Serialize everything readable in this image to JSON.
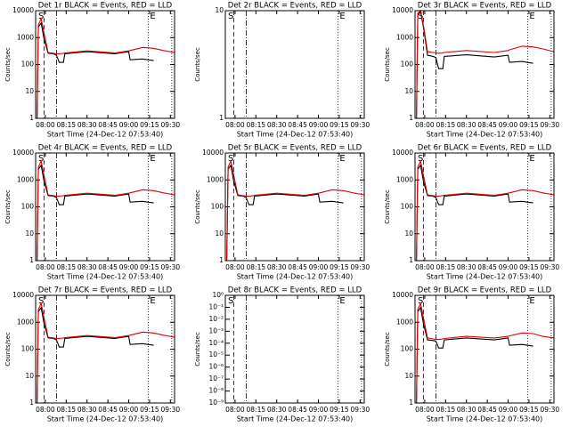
{
  "chart_data": [
    {
      "type": "line",
      "title": "Det 1r BLACK = Events, RED = LLD",
      "xlabel": "Start Time (24-Dec-12 07:53:40)",
      "ylabel": "Counts/sec",
      "ylog": true,
      "annotations": [
        "S",
        "E"
      ],
      "xlim": [
        "07:53",
        "09:33"
      ],
      "xticks": [
        "08:00",
        "08:15",
        "08:30",
        "08:45",
        "09:00",
        "09:15",
        "09:30"
      ],
      "ylim": [
        1,
        10000
      ],
      "yticks": [
        1,
        10,
        100,
        1000,
        10000
      ],
      "vlines": [
        {
          "x": "07:59",
          "style": "dashed"
        },
        {
          "x": "08:08",
          "style": "dashdot"
        },
        {
          "x": "09:14",
          "style": "dotted"
        },
        {
          "x": "09:31",
          "style": "dotted"
        }
      ],
      "x": [
        "07:54",
        "07:55",
        "07:57",
        "07:59",
        "08:02",
        "08:06",
        "08:08",
        "08:10",
        "08:13",
        "08:14",
        "08:30",
        "08:50",
        "09:00",
        "09:01",
        "09:10",
        "09:18",
        "09:25",
        "09:33"
      ],
      "series": [
        {
          "name": "BLACK",
          "color": "#000000",
          "values": [
            1,
            2500,
            3500,
            900,
            260,
            250,
            220,
            120,
            120,
            250,
            300,
            250,
            300,
            150,
            160,
            140,
            null,
            null
          ]
        },
        {
          "name": "RED",
          "color": "#e00000",
          "values": [
            1,
            3000,
            5000,
            1500,
            280,
            260,
            250,
            250,
            260,
            270,
            320,
            270,
            320,
            330,
            430,
            400,
            330,
            280
          ]
        }
      ]
    },
    {
      "type": "line",
      "title": "Det 2r BLACK = Events, RED = LLD",
      "xlabel": "Start Time (24-Dec-12 07:53:40)",
      "ylabel": "Counts/sec",
      "ylog": true,
      "annotations": [
        "S",
        "E"
      ],
      "xlim": [
        "07:53",
        "09:33"
      ],
      "xticks": [
        "08:00",
        "08:15",
        "08:30",
        "08:45",
        "09:00",
        "09:15",
        "09:30"
      ],
      "ylim": [
        1,
        10
      ],
      "yticks": [
        1,
        10
      ],
      "vlines": [
        {
          "x": "07:59",
          "style": "dashed"
        },
        {
          "x": "08:08",
          "style": "dashdot"
        },
        {
          "x": "09:14",
          "style": "dotted"
        },
        {
          "x": "09:31",
          "style": "dotted"
        }
      ],
      "x": [],
      "series": []
    },
    {
      "type": "line",
      "title": "Det 3r BLACK = Events, RED = LLD",
      "xlabel": "Start Time (24-Dec-12 07:53:40)",
      "ylabel": "Counts/sec",
      "ylog": true,
      "annotations": [
        "S",
        "E"
      ],
      "xlim": [
        "07:53",
        "09:33"
      ],
      "xticks": [
        "08:00",
        "08:15",
        "08:30",
        "08:45",
        "09:00",
        "09:15",
        "09:30"
      ],
      "ylim": [
        1,
        10000
      ],
      "yticks": [
        1,
        10,
        100,
        1000,
        10000
      ],
      "vlines": [
        {
          "x": "07:59",
          "style": "dashed"
        },
        {
          "x": "08:08",
          "style": "dashdot"
        },
        {
          "x": "09:14",
          "style": "dotted"
        },
        {
          "x": "09:31",
          "style": "dotted"
        }
      ],
      "x": [
        "07:54",
        "07:55",
        "07:57",
        "07:59",
        "08:02",
        "08:06",
        "08:08",
        "08:10",
        "08:13",
        "08:14",
        "08:30",
        "08:50",
        "09:00",
        "09:01",
        "09:10",
        "09:18",
        "09:25",
        "09:33"
      ],
      "series": [
        {
          "name": "BLACK",
          "color": "#000000",
          "values": [
            1,
            7000,
            9000,
            2500,
            220,
            200,
            180,
            70,
            70,
            200,
            230,
            190,
            220,
            120,
            130,
            110,
            null,
            null
          ]
        },
        {
          "name": "RED",
          "color": "#e00000",
          "values": [
            1,
            8000,
            10000,
            3000,
            300,
            280,
            270,
            260,
            270,
            280,
            330,
            280,
            330,
            350,
            480,
            450,
            380,
            300
          ]
        }
      ]
    },
    {
      "type": "line",
      "title": "Det 4r BLACK = Events, RED = LLD",
      "xlabel": "Start Time (24-Dec-12 07:53:40)",
      "ylabel": "Counts/sec",
      "ylog": true,
      "annotations": [
        "S",
        "E"
      ],
      "xlim": [
        "07:53",
        "09:33"
      ],
      "xticks": [
        "08:00",
        "08:15",
        "08:30",
        "08:45",
        "09:00",
        "09:15",
        "09:30"
      ],
      "ylim": [
        1,
        10000
      ],
      "yticks": [
        1,
        10,
        100,
        1000,
        10000
      ],
      "vlines": [
        {
          "x": "07:59",
          "style": "dashed"
        },
        {
          "x": "08:08",
          "style": "dashdot"
        },
        {
          "x": "09:14",
          "style": "dotted"
        },
        {
          "x": "09:31",
          "style": "dotted"
        }
      ],
      "x": [
        "07:54",
        "07:55",
        "07:57",
        "07:59",
        "08:02",
        "08:06",
        "08:08",
        "08:10",
        "08:13",
        "08:14",
        "08:30",
        "08:50",
        "09:00",
        "09:01",
        "09:10",
        "09:18",
        "09:25",
        "09:33"
      ],
      "series": [
        {
          "name": "BLACK",
          "color": "#000000",
          "values": [
            1,
            2500,
            3500,
            900,
            260,
            250,
            220,
            120,
            120,
            250,
            300,
            250,
            300,
            150,
            160,
            140,
            null,
            null
          ]
        },
        {
          "name": "RED",
          "color": "#e00000",
          "values": [
            1,
            3000,
            5000,
            1500,
            280,
            260,
            250,
            250,
            260,
            270,
            320,
            270,
            320,
            330,
            430,
            400,
            330,
            280
          ]
        }
      ]
    },
    {
      "type": "line",
      "title": "Det 5r BLACK = Events, RED = LLD",
      "xlabel": "Start Time (24-Dec-12 07:53:40)",
      "ylabel": "Counts/sec",
      "ylog": true,
      "annotations": [
        "S",
        "E"
      ],
      "xlim": [
        "07:53",
        "09:33"
      ],
      "xticks": [
        "08:00",
        "08:15",
        "08:30",
        "08:45",
        "09:00",
        "09:15",
        "09:30"
      ],
      "ylim": [
        1,
        10000
      ],
      "yticks": [
        1,
        10,
        100,
        1000,
        10000
      ],
      "vlines": [
        {
          "x": "07:59",
          "style": "dashed"
        },
        {
          "x": "08:08",
          "style": "dashdot"
        },
        {
          "x": "09:14",
          "style": "dotted"
        },
        {
          "x": "09:31",
          "style": "dotted"
        }
      ],
      "x": [
        "07:54",
        "07:55",
        "07:57",
        "07:59",
        "08:02",
        "08:06",
        "08:08",
        "08:10",
        "08:13",
        "08:14",
        "08:30",
        "08:50",
        "09:00",
        "09:01",
        "09:10",
        "09:18",
        "09:25",
        "09:33"
      ],
      "series": [
        {
          "name": "BLACK",
          "color": "#000000",
          "values": [
            1,
            2500,
            3500,
            900,
            260,
            250,
            220,
            120,
            120,
            250,
            300,
            250,
            300,
            150,
            160,
            140,
            null,
            null
          ]
        },
        {
          "name": "RED",
          "color": "#e00000",
          "values": [
            1,
            3000,
            5000,
            1500,
            280,
            260,
            250,
            250,
            260,
            270,
            320,
            270,
            320,
            330,
            430,
            400,
            330,
            280
          ]
        }
      ]
    },
    {
      "type": "line",
      "title": "Det 6r BLACK = Events, RED = LLD",
      "xlabel": "Start Time (24-Dec-12 07:53:40)",
      "ylabel": "Counts/sec",
      "ylog": true,
      "annotations": [
        "S",
        "E"
      ],
      "xlim": [
        "07:53",
        "09:33"
      ],
      "xticks": [
        "08:00",
        "08:15",
        "08:30",
        "08:45",
        "09:00",
        "09:15",
        "09:30"
      ],
      "ylim": [
        1,
        10000
      ],
      "yticks": [
        1,
        10,
        100,
        1000,
        10000
      ],
      "vlines": [
        {
          "x": "07:59",
          "style": "dashed"
        },
        {
          "x": "08:08",
          "style": "dashdot"
        },
        {
          "x": "09:14",
          "style": "dotted"
        },
        {
          "x": "09:31",
          "style": "dotted"
        }
      ],
      "x": [
        "07:54",
        "07:55",
        "07:57",
        "07:59",
        "08:02",
        "08:06",
        "08:08",
        "08:10",
        "08:13",
        "08:14",
        "08:30",
        "08:50",
        "09:00",
        "09:01",
        "09:10",
        "09:18",
        "09:25",
        "09:33"
      ],
      "series": [
        {
          "name": "BLACK",
          "color": "#000000",
          "values": [
            1,
            2500,
            3500,
            900,
            260,
            250,
            220,
            120,
            120,
            250,
            300,
            250,
            300,
            150,
            160,
            140,
            null,
            null
          ]
        },
        {
          "name": "RED",
          "color": "#e00000",
          "values": [
            1,
            3000,
            5000,
            1500,
            280,
            260,
            250,
            250,
            260,
            270,
            320,
            270,
            320,
            330,
            430,
            400,
            330,
            280
          ]
        }
      ]
    },
    {
      "type": "line",
      "title": "Det 7r BLACK = Events, RED = LLD",
      "xlabel": "Start Time (24-Dec-12 07:53:40)",
      "ylabel": "Counts/sec",
      "ylog": true,
      "annotations": [
        "S",
        "E"
      ],
      "xlim": [
        "07:53",
        "09:33"
      ],
      "xticks": [
        "08:00",
        "08:15",
        "08:30",
        "08:45",
        "09:00",
        "09:15",
        "09:30"
      ],
      "ylim": [
        1,
        10000
      ],
      "yticks": [
        1,
        10,
        100,
        1000,
        10000
      ],
      "vlines": [
        {
          "x": "07:59",
          "style": "dashed"
        },
        {
          "x": "08:08",
          "style": "dashdot"
        },
        {
          "x": "09:14",
          "style": "dotted"
        },
        {
          "x": "09:31",
          "style": "dotted"
        }
      ],
      "x": [
        "07:54",
        "07:55",
        "07:57",
        "07:59",
        "08:02",
        "08:06",
        "08:08",
        "08:10",
        "08:13",
        "08:14",
        "08:30",
        "08:50",
        "09:00",
        "09:01",
        "09:10",
        "09:18",
        "09:25",
        "09:33"
      ],
      "series": [
        {
          "name": "BLACK",
          "color": "#000000",
          "values": [
            1,
            2500,
            3500,
            900,
            260,
            250,
            220,
            120,
            120,
            250,
            300,
            250,
            300,
            150,
            160,
            140,
            null,
            null
          ]
        },
        {
          "name": "RED",
          "color": "#e00000",
          "values": [
            1,
            3000,
            5000,
            1500,
            280,
            260,
            250,
            250,
            260,
            270,
            320,
            270,
            320,
            330,
            430,
            400,
            330,
            280
          ]
        }
      ]
    },
    {
      "type": "line",
      "title": "Det 8r BLACK = Events, RED = LLD",
      "xlabel": "Start Time (24-Dec-12 07:53:40)",
      "ylabel": "Counts/sec",
      "ylog": true,
      "annotations": [
        "S",
        "E"
      ],
      "xlim": [
        "07:53",
        "09:33"
      ],
      "xticks": [
        "08:00",
        "08:15",
        "08:30",
        "08:45",
        "09:00",
        "09:15",
        "09:30"
      ],
      "ylim": [
        1e-09,
        1
      ],
      "yticks": [
        {
          "value": 1e-09,
          "label": "10⁻⁹"
        },
        {
          "value": 1e-08,
          "label": "10⁻⁸"
        },
        {
          "value": 1e-07,
          "label": "10⁻⁷"
        },
        {
          "value": 1e-06,
          "label": "10⁻⁶"
        },
        {
          "value": 1e-05,
          "label": "10⁻⁵"
        },
        {
          "value": 0.0001,
          "label": "10⁻⁴"
        },
        {
          "value": 0.001,
          "label": "10⁻³"
        },
        {
          "value": 0.01,
          "label": "10⁻²"
        },
        {
          "value": 0.1,
          "label": "10⁻¹"
        },
        {
          "value": 1,
          "label": "10⁰"
        }
      ],
      "vlines": [
        {
          "x": "07:59",
          "style": "dashed"
        },
        {
          "x": "08:08",
          "style": "dashdot"
        },
        {
          "x": "09:14",
          "style": "dotted"
        },
        {
          "x": "09:31",
          "style": "dotted"
        }
      ],
      "x": [],
      "series": []
    },
    {
      "type": "line",
      "title": "Det 9r BLACK = Events, RED = LLD",
      "xlabel": "Start Time (24-Dec-12 07:53:40)",
      "ylabel": "Counts/sec",
      "ylog": true,
      "annotations": [
        "S",
        "E"
      ],
      "xlim": [
        "07:53",
        "09:33"
      ],
      "xticks": [
        "08:00",
        "08:15",
        "08:30",
        "08:45",
        "09:00",
        "09:15",
        "09:30"
      ],
      "ylim": [
        1,
        10000
      ],
      "yticks": [
        1,
        10,
        100,
        1000,
        10000
      ],
      "vlines": [
        {
          "x": "07:59",
          "style": "dashed"
        },
        {
          "x": "08:08",
          "style": "dashdot"
        },
        {
          "x": "09:14",
          "style": "dotted"
        },
        {
          "x": "09:31",
          "style": "dotted"
        }
      ],
      "x": [
        "07:54",
        "07:55",
        "07:57",
        "07:59",
        "08:02",
        "08:06",
        "08:08",
        "08:10",
        "08:13",
        "08:14",
        "08:30",
        "08:50",
        "09:00",
        "09:01",
        "09:10",
        "09:18",
        "09:25",
        "09:33"
      ],
      "series": [
        {
          "name": "BLACK",
          "color": "#000000",
          "values": [
            1,
            2500,
            3500,
            900,
            220,
            210,
            200,
            110,
            110,
            220,
            260,
            220,
            260,
            140,
            150,
            130,
            null,
            null
          ]
        },
        {
          "name": "RED",
          "color": "#e00000",
          "values": [
            1,
            3000,
            5000,
            1500,
            260,
            240,
            230,
            230,
            240,
            250,
            300,
            260,
            300,
            310,
            400,
            380,
            300,
            260
          ]
        }
      ]
    }
  ]
}
